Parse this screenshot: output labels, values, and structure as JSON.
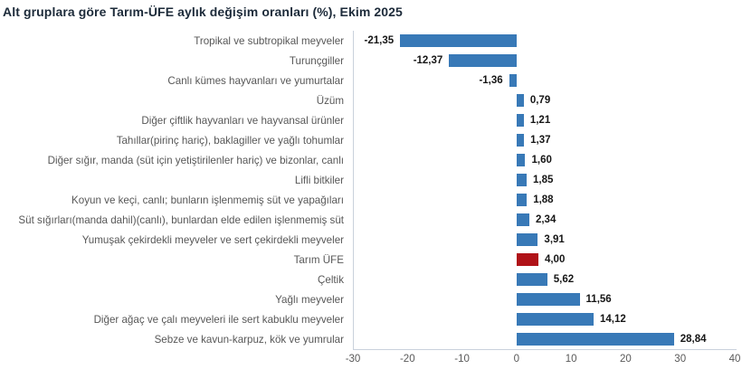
{
  "page": {
    "title": "Alt gruplara göre Tarım-ÜFE aylık değişim oranları (%), Ekim 2025"
  },
  "colors": {
    "bar": "#3879b7",
    "highlight_bar": "#b01218",
    "axis_line": "#c9d1dc",
    "title_text": "#1d2b3a",
    "category_text": "#575757",
    "value_text": "#161616",
    "tick_text": "#595959",
    "background": "#ffffff"
  },
  "chart_data": {
    "type": "bar",
    "orientation": "horizontal",
    "title": "Alt gruplara göre Tarım-ÜFE aylık değişim oranları (%), Ekim 2025",
    "categories": [
      "Tropikal ve subtropikal meyveler",
      "Turunçgiller",
      "Canlı kümes hayvanları ve yumurtalar",
      "Üzüm",
      "Diğer çiftlik hayvanları ve hayvansal ürünler",
      "Tahıllar(pirinç hariç), baklagiller ve yağlı tohumlar",
      "Diğer sığır, manda (süt için yetiştirilenler hariç) ve bizonlar, canlı",
      "Lifli bitkiler",
      "Koyun ve keçi, canlı; bunların işlenmemiş süt ve yapağıları",
      "Süt sığırları(manda dahil)(canlı), bunlardan elde edilen işlenmemiş süt",
      "Yumuşak çekirdekli meyveler ve sert çekirdekli meyveler",
      "Tarım ÜFE",
      "Çeltik",
      "Yağlı meyveler",
      "Diğer ağaç ve çalı meyveleri ile sert kabuklu meyveler",
      "Sebze ve kavun-karpuz, kök ve yumrular"
    ],
    "values": [
      -21.35,
      -12.37,
      -1.36,
      0.79,
      1.21,
      1.37,
      1.6,
      1.85,
      1.88,
      2.34,
      3.91,
      4.0,
      5.62,
      11.56,
      14.12,
      28.84
    ],
    "value_labels": [
      "-21,35",
      "-12,37",
      "-1,36",
      "0,79",
      "1,21",
      "1,37",
      "1,60",
      "1,85",
      "1,88",
      "2,34",
      "3,91",
      "4,00",
      "5,62",
      "11,56",
      "14,12",
      "28,84"
    ],
    "highlight_index": 11,
    "xlabel": "",
    "ylabel": "",
    "xlim": [
      -30,
      40
    ],
    "x_ticks": [
      -30,
      -20,
      -10,
      0,
      10,
      20,
      30,
      40
    ],
    "grid": false,
    "legend": false
  }
}
